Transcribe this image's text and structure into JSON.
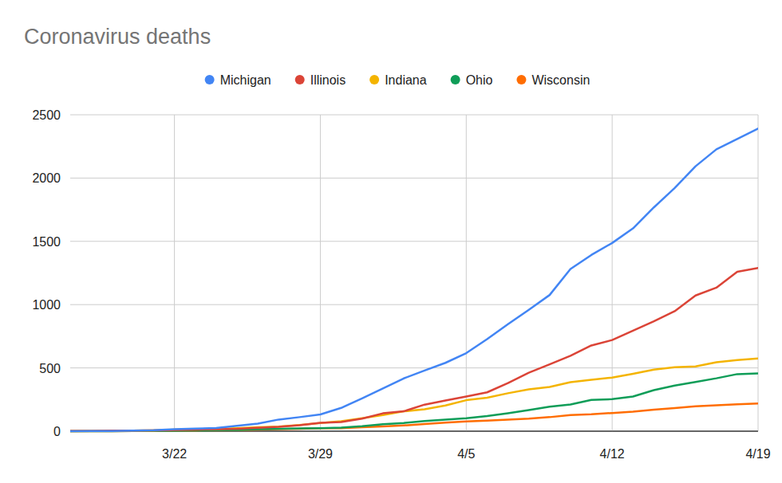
{
  "chart_data": {
    "type": "line",
    "title": "Coronavirus deaths",
    "categories": [
      null,
      null,
      null,
      null,
      null,
      "3/22",
      null,
      null,
      null,
      null,
      null,
      null,
      "3/29",
      null,
      null,
      null,
      null,
      null,
      null,
      "4/5",
      null,
      null,
      null,
      null,
      null,
      null,
      "4/12",
      null,
      null,
      null,
      null,
      null,
      null,
      "4/19"
    ],
    "series": [
      {
        "name": "Michigan",
        "color": "#4285f4",
        "values": [
          0,
          1,
          2,
          5,
          8,
          15,
          20,
          25,
          43,
          60,
          92,
          111,
          132,
          184,
          259,
          337,
          417,
          479,
          540,
          617,
          727,
          845,
          959,
          1076,
          1281,
          1392,
          1487,
          1602,
          1768,
          1921,
          2093,
          2227,
          2308,
          2391
        ]
      },
      {
        "name": "Illinois",
        "color": "#db4437",
        "values": [
          1,
          1,
          4,
          5,
          6,
          9,
          12,
          16,
          19,
          26,
          34,
          47,
          66,
          73,
          99,
          141,
          157,
          210,
          243,
          274,
          307,
          380,
          462,
          528,
          596,
          677,
          720,
          794,
          868,
          948,
          1072,
          1134,
          1259,
          1290
        ]
      },
      {
        "name": "Indiana",
        "color": "#f4b400",
        "values": [
          0,
          1,
          2,
          4,
          7,
          12,
          14,
          17,
          24,
          32,
          36,
          49,
          65,
          78,
          102,
          127,
          157,
          173,
          203,
          245,
          265,
          300,
          330,
          350,
          387,
          406,
          424,
          454,
          487,
          505,
          512,
          545,
          562,
          575
        ]
      },
      {
        "name": "Ohio",
        "color": "#0f9d58",
        "values": [
          0,
          0,
          0,
          1,
          3,
          3,
          6,
          8,
          10,
          15,
          19,
          22,
          24,
          29,
          39,
          55,
          65,
          81,
          91,
          102,
          119,
          142,
          167,
          193,
          211,
          247,
          253,
          274,
          324,
          361,
          389,
          418,
          451,
          457
        ]
      },
      {
        "name": "Wisconsin",
        "color": "#ff6d01",
        "values": [
          0,
          0,
          0,
          1,
          3,
          4,
          5,
          7,
          8,
          12,
          16,
          19,
          23,
          24,
          32,
          37,
          45,
          56,
          68,
          77,
          83,
          92,
          99,
          111,
          128,
          134,
          144,
          154,
          170,
          182,
          197,
          205,
          212,
          219
        ]
      }
    ],
    "ylim": [
      0,
      2500
    ],
    "yticks": [
      0,
      500,
      1000,
      1500,
      2000,
      2500
    ],
    "grid": true,
    "legend": "top"
  }
}
